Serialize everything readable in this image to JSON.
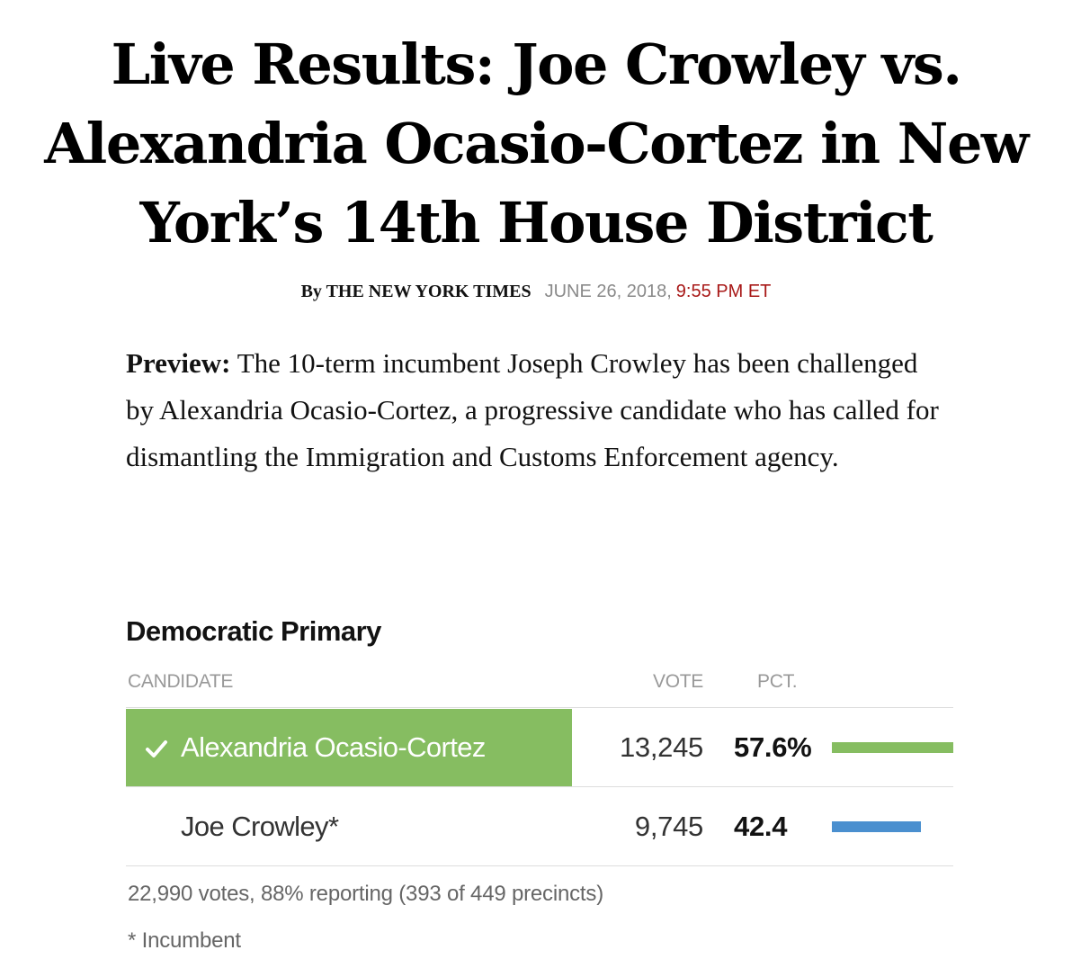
{
  "article": {
    "headline": "Live Results: Joe Crowley vs. Alexandria Ocasio-Cortez in New York’s 14th House District",
    "byline_by": "By THE NEW YORK TIMES",
    "byline_date": "JUNE 26, 2018,",
    "byline_time": "9:55 PM ET",
    "preview_label": "Preview:",
    "preview_text": "The 10-term incumbent Joseph Crowley has been challenged by Alexandria Ocasio-Cortez, a progressive candidate who has called for dismantling the Immigration and Customs Enforcement agency."
  },
  "results": {
    "race_title": "Democratic Primary",
    "headers": {
      "candidate": "CANDIDATE",
      "vote": "VOTE",
      "pct": "PCT."
    },
    "rows": [
      {
        "name": "Alexandria Ocasio-Cortez",
        "votes": "13,245",
        "pct_label": "57.6%",
        "pct_value": 57.6,
        "winner": true,
        "bar_color": "#86bd61",
        "row_color": "#86bd61",
        "icon": "check-icon"
      },
      {
        "name": "Joe Crowley*",
        "votes": "9,745",
        "pct_label": "42.4",
        "pct_value": 42.4,
        "winner": false,
        "bar_color": "#4a8fcf"
      }
    ],
    "reporting": "22,990 votes, 88% reporting (393 of 449 precincts)",
    "incumbent_note": "* Incumbent"
  }
}
